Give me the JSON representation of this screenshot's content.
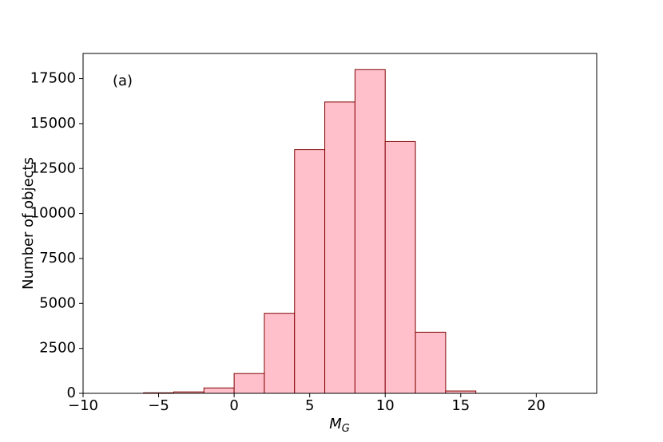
{
  "chart_data": {
    "type": "histogram",
    "annotation": "(a)",
    "xlabel": "M",
    "xlabel_sub": "G",
    "ylabel": "Number of objects",
    "bins": [
      -6,
      -4,
      -2,
      0,
      2,
      4,
      6,
      8,
      10,
      12,
      14,
      16
    ],
    "values": [
      30,
      80,
      300,
      1100,
      4450,
      13550,
      16200,
      18000,
      14000,
      3400,
      130
    ],
    "color": "#ffc0cb",
    "edgecolor": "#800000",
    "xlim": [
      -10,
      24
    ],
    "xticks": [
      {
        "value": -10,
        "label": "−10"
      },
      {
        "value": -5,
        "label": "−5"
      },
      0,
      5,
      10,
      15,
      20
    ],
    "ylim": [
      0,
      18900
    ],
    "yticks": [
      0,
      2500,
      5000,
      7500,
      10000,
      12500,
      15000,
      17500
    ]
  }
}
